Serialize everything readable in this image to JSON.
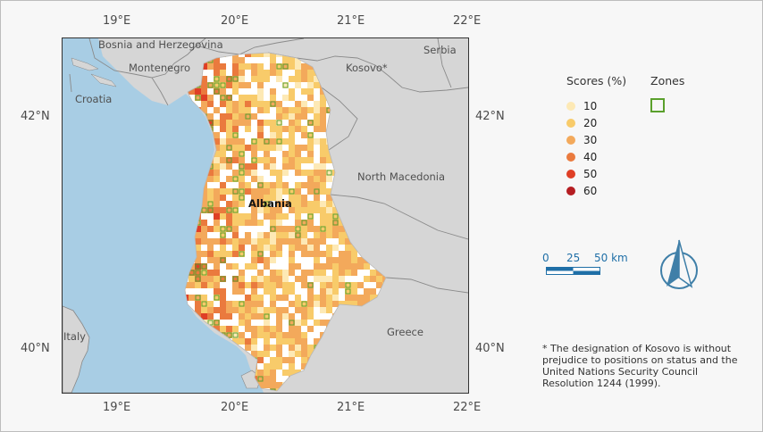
{
  "coords": {
    "top": [
      "19°E",
      "20°E",
      "21°E",
      "22°E"
    ],
    "bottom": [
      "19°E",
      "20°E",
      "21°E",
      "22°E"
    ],
    "left": [
      "42°N",
      "40°N"
    ],
    "right": [
      "42°N",
      "40°N"
    ]
  },
  "map_labels": {
    "bosnia": "Bosnia and Herzegovina",
    "serbia": "Serbia",
    "montenegro": "Montenegro",
    "kosovo": "Kosovo*",
    "croatia": "Croatia",
    "north_macedonia": "North Macedonia",
    "albania": "Albania",
    "italy": "Italy",
    "greece": "Greece"
  },
  "legend": {
    "scores_title": "Scores (%)",
    "zones_title": "Zones",
    "items": [
      {
        "label": "10",
        "color": "#fde9b5"
      },
      {
        "label": "20",
        "color": "#f8cb6a"
      },
      {
        "label": "30",
        "color": "#f3a95b"
      },
      {
        "label": "40",
        "color": "#ea7a3e"
      },
      {
        "label": "50",
        "color": "#df3f26"
      },
      {
        "label": "60",
        "color": "#b51d22"
      }
    ],
    "zone_color": "#5aa02c"
  },
  "scale_bar": {
    "labels": [
      "0",
      "25",
      "50 km"
    ],
    "color": "#1f6fa7"
  },
  "north_arrow": {
    "icon": "north-arrow-icon",
    "color": "#3f7fa8"
  },
  "footnote": "* The designation of Kosovo is without prejudice to positions on status and the United Nations Security Council Resolution 1244 (1999).",
  "colors": {
    "sea": "#a8cde4",
    "land": "#d6d6d6",
    "albania_base": "#f7cf8f"
  }
}
